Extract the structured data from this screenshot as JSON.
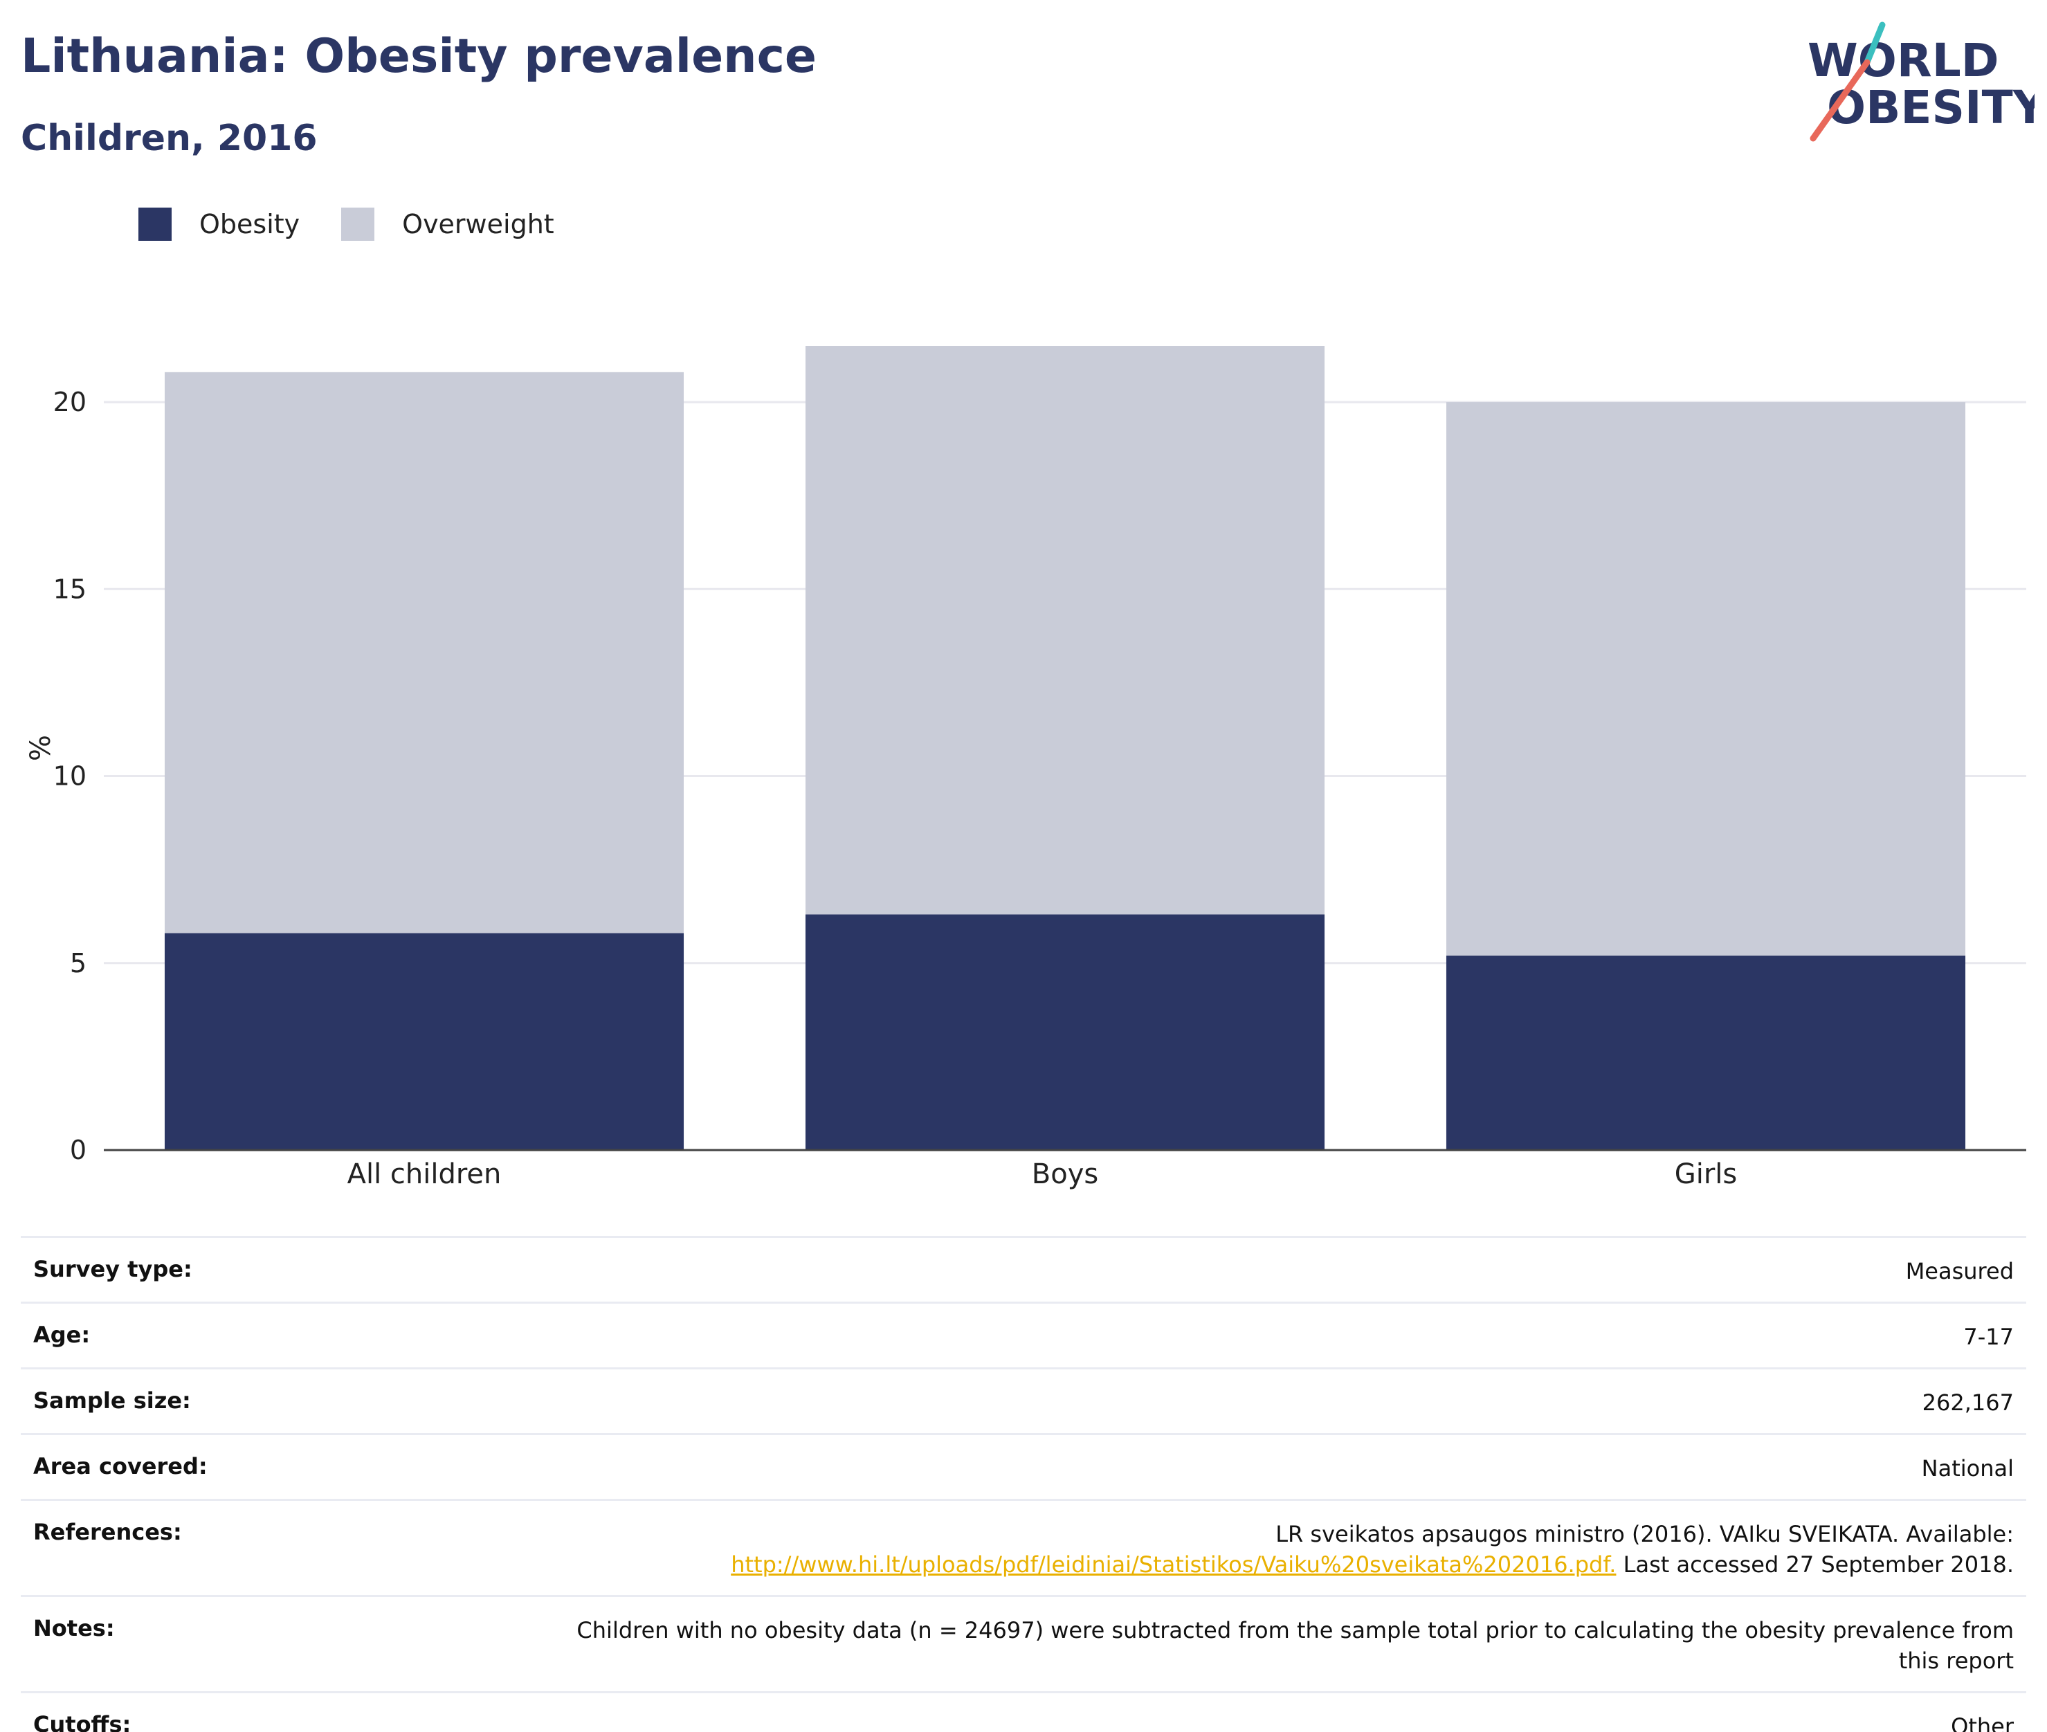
{
  "header": {
    "title": "Lithuania: Obesity prevalence",
    "subtitle": "Children, 2016"
  },
  "logo": {
    "line1": "WORLD",
    "line2": "OBESITY",
    "slash_colors": [
      "#3bbfbf",
      "#e8685a"
    ]
  },
  "colors": {
    "obesity": "#2b3664",
    "overweight": "#c9ccd8",
    "title": "#2b3664",
    "link": "#e9b000"
  },
  "chart_data": {
    "type": "bar",
    "stacked": true,
    "categories": [
      "All children",
      "Boys",
      "Girls"
    ],
    "series": [
      {
        "name": "Obesity",
        "values": [
          5.8,
          6.3,
          5.2
        ]
      },
      {
        "name": "Overweight",
        "values": [
          15.0,
          15.2,
          14.8
        ]
      }
    ],
    "ylabel": "%",
    "xlabel": "",
    "ylim": [
      0,
      21.5
    ],
    "yticks": [
      0,
      5,
      10,
      15,
      20
    ],
    "grid": true,
    "legend_position": "top-left"
  },
  "info": {
    "survey_type": {
      "label": "Survey type:",
      "value": "Measured"
    },
    "age": {
      "label": "Age:",
      "value": "7-17"
    },
    "sample_size": {
      "label": "Sample size:",
      "value": "262,167"
    },
    "area_covered": {
      "label": "Area covered:",
      "value": "National"
    },
    "references": {
      "label": "References:",
      "text_before": "LR sveikatos apsaugos ministro (2016). VAIku SVEIKATA. Available:",
      "link": "http://www.hi.lt/uploads/pdf/leidiniai/Statistikos/Vaiku%20sveikata%202016.pdf.",
      "text_after": " Last accessed 27 September 2018."
    },
    "notes": {
      "label": "Notes:",
      "value": "Children with no obesity data (n = 24697) were subtracted from the sample total prior to calculating the obesity prevalence from this report"
    },
    "cutoffs": {
      "label": "Cutoffs:",
      "value": "Other"
    }
  }
}
